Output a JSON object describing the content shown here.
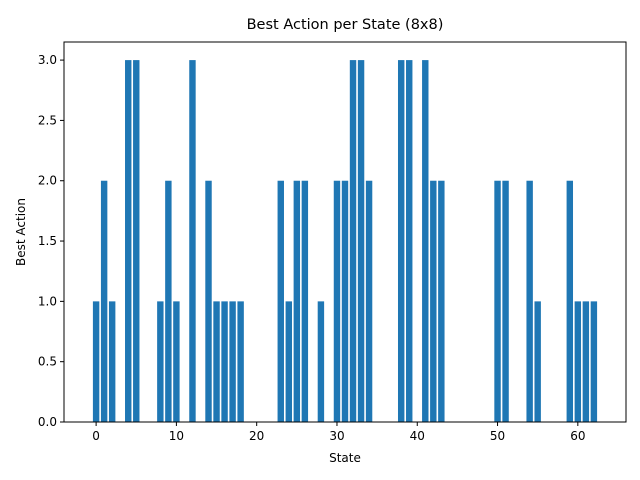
{
  "chart_data": {
    "type": "bar",
    "title": "Best Action per State (8x8)",
    "xlabel": "State",
    "ylabel": "Best Action",
    "color": "#1f77b4",
    "xlim": [
      -4,
      66
    ],
    "ylim": [
      0,
      3.15
    ],
    "xticks": [
      0,
      10,
      20,
      30,
      40,
      50,
      60
    ],
    "yticks": [
      "0.0",
      "0.5",
      "1.0",
      "1.5",
      "2.0",
      "2.5",
      "3.0"
    ],
    "grid": false,
    "x": [
      0,
      1,
      2,
      3,
      4,
      5,
      6,
      7,
      8,
      9,
      10,
      11,
      12,
      13,
      14,
      15,
      16,
      17,
      18,
      19,
      20,
      21,
      22,
      23,
      24,
      25,
      26,
      27,
      28,
      29,
      30,
      31,
      32,
      33,
      34,
      35,
      36,
      37,
      38,
      39,
      40,
      41,
      42,
      43,
      44,
      45,
      46,
      47,
      48,
      49,
      50,
      51,
      52,
      53,
      54,
      55,
      56,
      57,
      58,
      59,
      60,
      61,
      62,
      63
    ],
    "values": [
      1,
      2,
      1,
      0,
      3,
      3,
      0,
      0,
      1,
      2,
      1,
      0,
      3,
      0,
      2,
      1,
      1,
      1,
      1,
      0,
      0,
      0,
      0,
      2,
      1,
      2,
      2,
      0,
      1,
      0,
      2,
      2,
      3,
      3,
      2,
      0,
      0,
      0,
      3,
      3,
      0,
      3,
      2,
      2,
      0,
      0,
      0,
      0,
      0,
      0,
      2,
      2,
      0,
      0,
      2,
      1,
      0,
      0,
      0,
      2,
      1,
      1,
      1,
      0
    ]
  }
}
